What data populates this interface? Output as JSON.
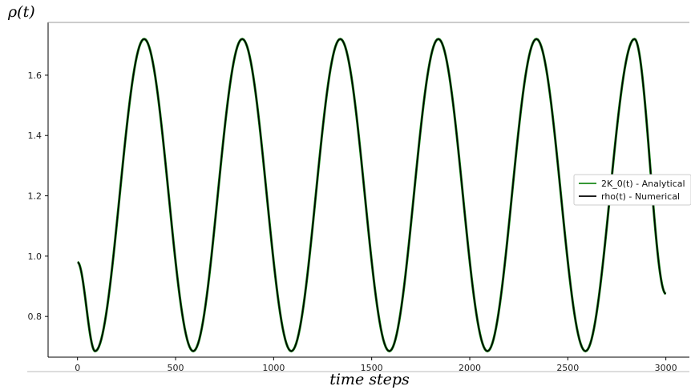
{
  "chart_data": {
    "type": "line",
    "title": "",
    "xlabel": "time steps",
    "ylabel": "ρ(t)",
    "xlim": [
      -150,
      3120
    ],
    "ylim": [
      0.665,
      1.775
    ],
    "xticks": [
      0,
      500,
      1000,
      1500,
      2000,
      2500,
      3000
    ],
    "xtick_labels": [
      "0",
      "500",
      "1000",
      "1500",
      "2000",
      "2500",
      "3000"
    ],
    "yticks": [
      0.8,
      1.0,
      1.2,
      1.4,
      1.6
    ],
    "ytick_labels": [
      "0.8",
      "1.0",
      "1.2",
      "1.4",
      "1.6"
    ],
    "grid": false,
    "legend_position": "right",
    "series": [
      {
        "name": "2K_0(t) - Analytical",
        "color": "#1a8a1a",
        "x": [
          0,
          90,
          340,
          590,
          840,
          1090,
          1340,
          1590,
          1840,
          2090,
          2340,
          2590,
          2840,
          3000
        ],
        "y": [
          0.98,
          0.685,
          1.72,
          0.685,
          1.72,
          0.685,
          1.72,
          0.685,
          1.72,
          0.685,
          1.72,
          0.685,
          1.72,
          0.875
        ]
      },
      {
        "name": "rho(t) - Numerical",
        "color": "#000000",
        "x": [
          0,
          90,
          340,
          590,
          840,
          1090,
          1340,
          1590,
          1840,
          2090,
          2340,
          2590,
          2840,
          3000
        ],
        "y": [
          0.98,
          0.685,
          1.72,
          0.685,
          1.72,
          0.685,
          1.72,
          0.685,
          1.72,
          0.685,
          1.72,
          0.685,
          1.72,
          0.875
        ]
      }
    ]
  }
}
